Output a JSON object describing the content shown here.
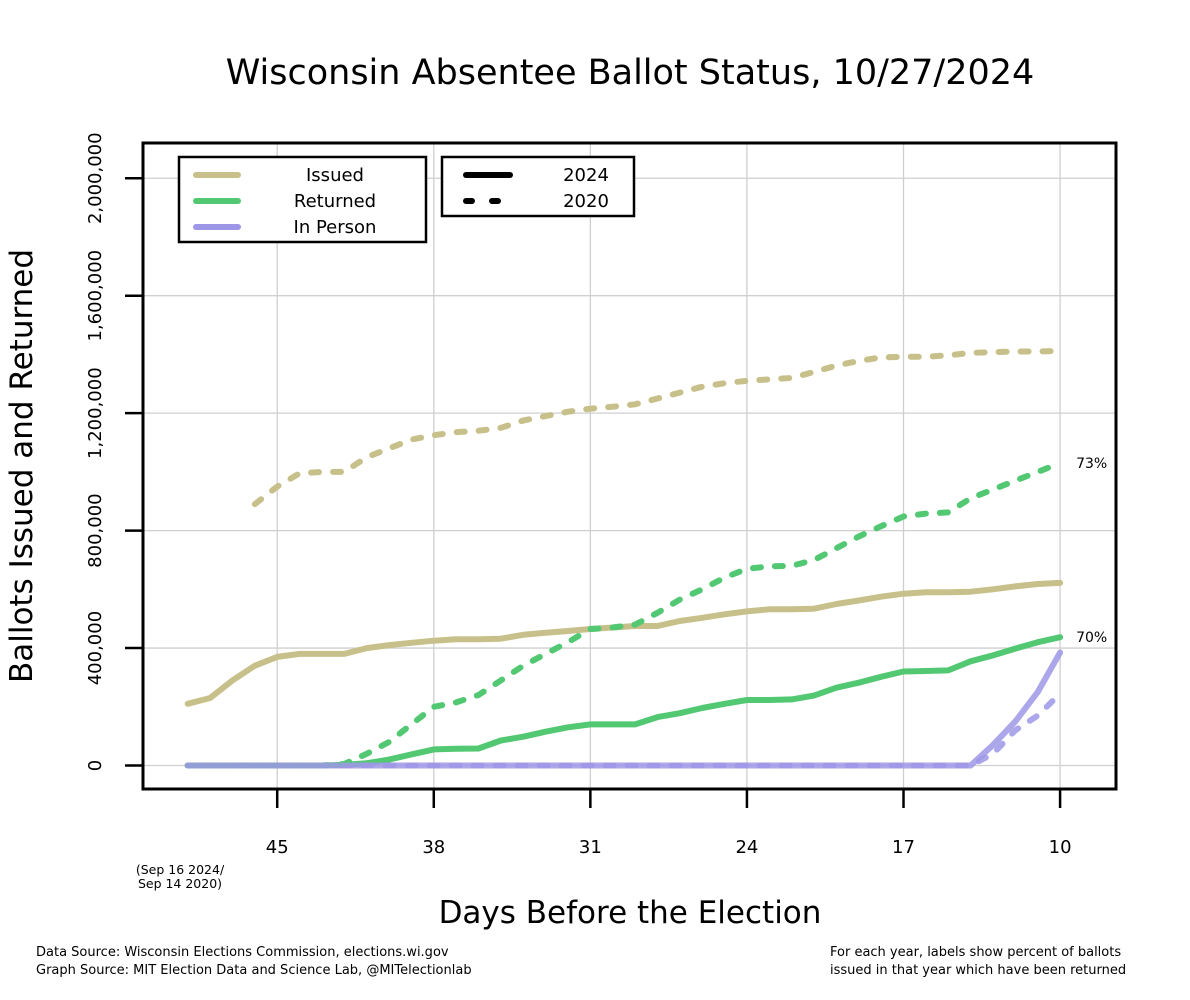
{
  "chart_data": {
    "type": "line",
    "title": "Wisconsin Absentee Ballot Status, 10/27/2024",
    "xlabel": "Days Before the Election",
    "ylabel": "Ballots Issued and Returned",
    "x_reversed": true,
    "xlim": [
      51,
      7.5
    ],
    "ylim": [
      -80000,
      2120000
    ],
    "x_ticks": [
      45,
      38,
      31,
      24,
      17,
      10
    ],
    "x_tick_labels": [
      "45",
      "38",
      "31",
      "24",
      "17",
      "10"
    ],
    "x_start_note": [
      "(Sep 16 2024/",
      "Sep 14 2020)"
    ],
    "y_ticks": [
      0,
      400000,
      800000,
      1200000,
      1600000,
      2000000
    ],
    "y_tick_labels": [
      "0",
      "400,000",
      "800,000",
      "1,200,000",
      "1,600,000",
      "2,000,000"
    ],
    "grid": true,
    "colors": {
      "issued": "#c8c08a",
      "returned": "#52c872",
      "in_person": "#9e96e6"
    },
    "series": [
      {
        "key": "issued_2024",
        "category": "Issued",
        "year": "2024",
        "color": "#c8c08a",
        "dashed": false,
        "x": [
          49,
          48,
          47,
          46,
          45,
          44,
          43,
          42,
          41,
          40,
          39,
          38,
          37,
          36,
          35,
          34,
          33,
          32,
          31,
          30,
          29,
          28,
          27,
          26,
          25,
          24,
          23,
          22,
          21,
          20,
          19,
          18,
          17,
          16,
          15,
          14,
          13,
          12,
          11,
          10
        ],
        "y": [
          210000,
          230000,
          290000,
          340000,
          370000,
          380000,
          380000,
          380000,
          400000,
          410000,
          418000,
          425000,
          430000,
          430000,
          432000,
          445000,
          452000,
          458000,
          465000,
          470000,
          475000,
          475000,
          492000,
          503000,
          515000,
          525000,
          532000,
          532000,
          534000,
          550000,
          562000,
          575000,
          585000,
          590000,
          590000,
          592000,
          600000,
          610000,
          618000,
          622000
        ]
      },
      {
        "key": "returned_2024",
        "category": "Returned",
        "year": "2024",
        "color": "#52c872",
        "dashed": false,
        "x": [
          49,
          48,
          47,
          46,
          45,
          44,
          43,
          42,
          41,
          40,
          39,
          38,
          37,
          36,
          35,
          34,
          33,
          32,
          31,
          30,
          29,
          28,
          27,
          26,
          25,
          24,
          23,
          22,
          21,
          20,
          19,
          18,
          17,
          16,
          15,
          14,
          13,
          12,
          11,
          10
        ],
        "y": [
          0,
          0,
          0,
          0,
          0,
          0,
          0,
          2000,
          8000,
          20000,
          38000,
          55000,
          57000,
          58000,
          85000,
          98000,
          115000,
          130000,
          140000,
          140000,
          140000,
          165000,
          178000,
          196000,
          210000,
          223000,
          223000,
          225000,
          238000,
          265000,
          282000,
          302000,
          320000,
          322000,
          324000,
          355000,
          375000,
          398000,
          420000,
          437000
        ]
      },
      {
        "key": "in_person_2024",
        "category": "In Person",
        "year": "2024",
        "color": "#9e96e6",
        "dashed": false,
        "x": [
          49,
          45,
          40,
          35,
          30,
          25,
          20,
          15,
          14,
          13,
          12,
          11,
          10
        ],
        "y": [
          0,
          0,
          0,
          0,
          0,
          0,
          0,
          0,
          0,
          70000,
          150000,
          250000,
          385000
        ]
      },
      {
        "key": "issued_2020",
        "category": "Issued",
        "year": "2020",
        "color": "#c8c08a",
        "dashed": true,
        "x": [
          46,
          45,
          44,
          43,
          42,
          41,
          40,
          39,
          38,
          37,
          36,
          35,
          34,
          33,
          32,
          31,
          30,
          29,
          28,
          27,
          26,
          25,
          24,
          23,
          22,
          21,
          20,
          19,
          18,
          17,
          16,
          15,
          14,
          13,
          12,
          11,
          10
        ],
        "y": [
          890000,
          950000,
          995000,
          1000000,
          1000000,
          1050000,
          1080000,
          1110000,
          1125000,
          1135000,
          1140000,
          1150000,
          1175000,
          1190000,
          1205000,
          1215000,
          1222000,
          1230000,
          1250000,
          1270000,
          1290000,
          1302000,
          1310000,
          1315000,
          1320000,
          1340000,
          1362000,
          1378000,
          1390000,
          1392000,
          1392000,
          1397000,
          1405000,
          1408000,
          1410000,
          1410000,
          1412000
        ]
      },
      {
        "key": "returned_2020",
        "category": "Returned",
        "year": "2020",
        "color": "#52c872",
        "dashed": true,
        "x": [
          49,
          45,
          43,
          42,
          41,
          40,
          39,
          38,
          37,
          36,
          35,
          34,
          33,
          32,
          31,
          30,
          29,
          28,
          27,
          26,
          25,
          24,
          23,
          22,
          21,
          20,
          19,
          18,
          17,
          16,
          15,
          14,
          13,
          12,
          11,
          10
        ],
        "y": [
          0,
          0,
          0,
          5000,
          40000,
          80000,
          140000,
          200000,
          215000,
          240000,
          290000,
          340000,
          380000,
          420000,
          465000,
          470000,
          480000,
          520000,
          565000,
          600000,
          640000,
          670000,
          678000,
          680000,
          700000,
          740000,
          780000,
          815000,
          848000,
          858000,
          862000,
          910000,
          940000,
          970000,
          1000000,
          1030000
        ]
      },
      {
        "key": "in_person_2020",
        "category": "In Person",
        "year": "2020",
        "color": "#9e96e6",
        "dashed": true,
        "x": [
          49,
          45,
          40,
          35,
          30,
          25,
          20,
          15,
          14,
          13,
          12,
          11,
          10
        ],
        "y": [
          0,
          0,
          0,
          0,
          0,
          0,
          0,
          0,
          0,
          40000,
          120000,
          170000,
          245000
        ]
      }
    ],
    "end_labels": [
      {
        "text": "73%",
        "x": 10,
        "y": 1030000
      },
      {
        "text": "70%",
        "x": 10,
        "y": 437000
      }
    ],
    "legend_position": "top-left",
    "legend_items": [
      "Issued",
      "Returned",
      "In Person"
    ],
    "legend_years": [
      "2024",
      "2020"
    ]
  },
  "footnotes": {
    "left": [
      "Data Source: Wisconsin Elections Commission, elections.wi.gov",
      "Graph Source: MIT Election Data and Science Lab, @MITelectionlab"
    ],
    "right": [
      "For each year, labels show percent of ballots",
      "issued in that year which have been returned"
    ]
  }
}
